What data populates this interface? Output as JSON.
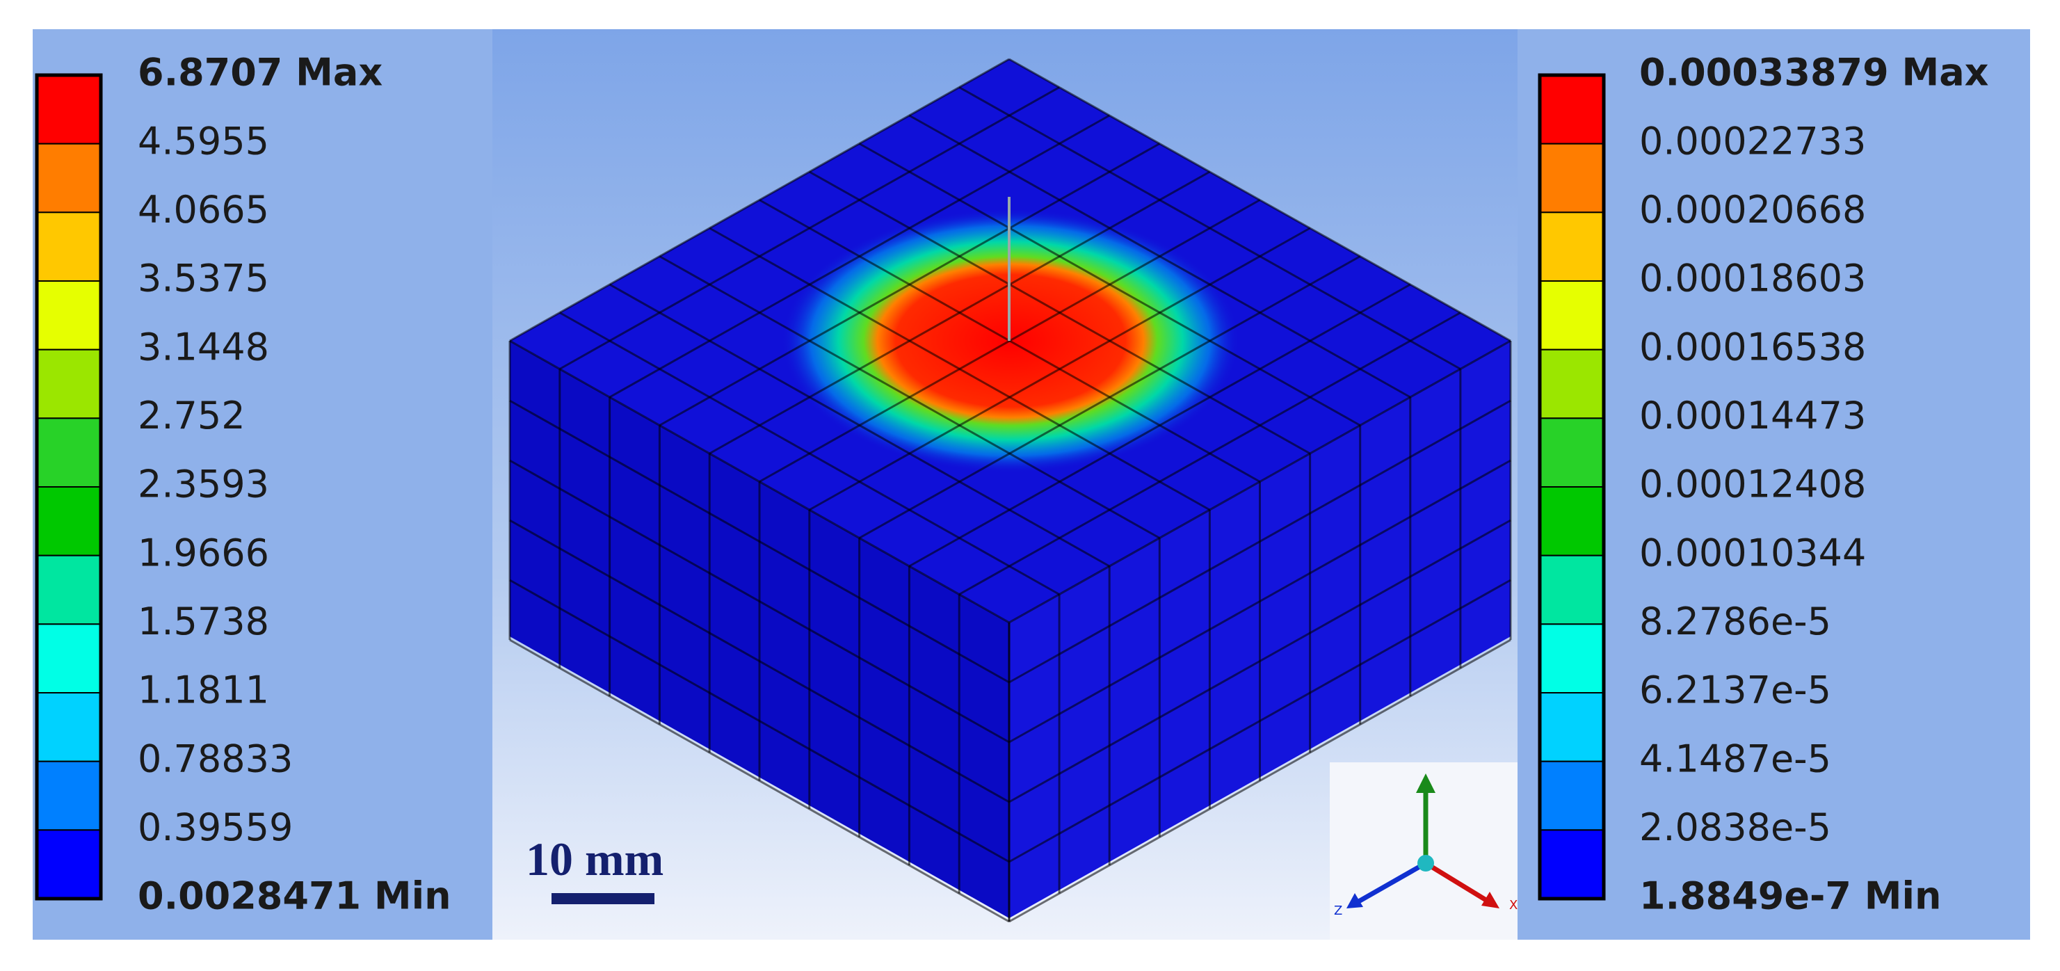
{
  "left_legend": {
    "max": "6.8707 Max",
    "labels": [
      "4.5955",
      "4.0665",
      "3.5375",
      "3.1448",
      "2.752",
      "2.3593",
      "1.9666",
      "1.5738",
      "1.1811",
      "0.78833",
      "0.39559"
    ],
    "min": "0.0028471 Min"
  },
  "right_legend": {
    "max": "0.00033879 Max",
    "labels": [
      "0.00022733",
      "0.00020668",
      "0.00018603",
      "0.00016538",
      "0.00014473",
      "0.00012408",
      "0.00010344",
      "8.2786e-5",
      "6.2137e-5",
      "4.1487e-5",
      "2.0838e-5"
    ],
    "min": "1.8849e-7 Min"
  },
  "band_colors": [
    "#ff0000",
    "#ff7d00",
    "#ffc800",
    "#e6ff00",
    "#9be600",
    "#28d228",
    "#00c800",
    "#00e6a0",
    "#00ffe6",
    "#00d2ff",
    "#0080ff",
    "#0000ff"
  ],
  "scale_bar": "10 mm",
  "triad": {
    "z": "Z",
    "x": "X"
  }
}
